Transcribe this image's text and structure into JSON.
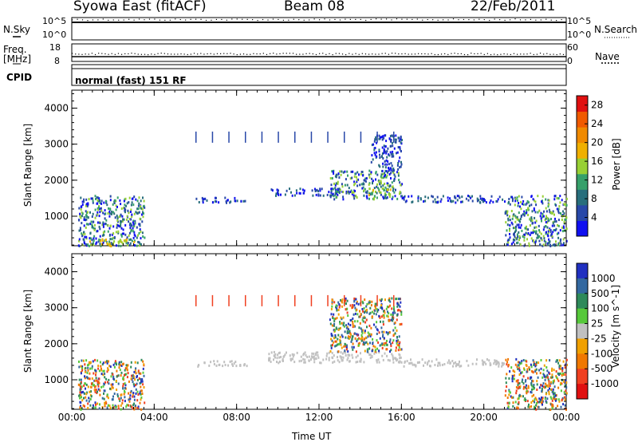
{
  "header": {
    "station": "Syowa East (fitACF)",
    "beam": "Beam 08",
    "date": "22/Feb/2011"
  },
  "strip": {
    "nsky_label": "N.Sky",
    "nsearch_label": "N.Search",
    "noise_tick_top": "10^5",
    "noise_tick_bottom": "10^0",
    "freq_label_1": "Freq.",
    "freq_label_2": "[MHz]",
    "freq_tick_top": "18",
    "freq_tick_bottom": "8",
    "nave_label": "Nave",
    "nave_tick_top": "60",
    "nave_tick_bottom": "0",
    "cpid_label": "CPID",
    "cpid_value": "normal (fast) 151 RF"
  },
  "power_panel": {
    "ylabel": "Slant Range [km]",
    "cbar_label": "Power [dB]"
  },
  "velocity_panel": {
    "ylabel": "Slant Range [km]",
    "cbar_label": "Velocity [m s^-1]"
  },
  "xlabel": "Time UT",
  "colors": {
    "power": [
      "#1010f0",
      "#2848a8",
      "#286e7c",
      "#36a06a",
      "#98d034",
      "#f0b000",
      "#f08a00",
      "#f05a00",
      "#e01010"
    ],
    "velocity": [
      "#2030c0",
      "#3368a0",
      "#2e8a5a",
      "#56c83a",
      "#c0c0c0",
      "#f0a000",
      "#f07800",
      "#f04020",
      "#e01010"
    ]
  },
  "chart_data": [
    {
      "type": "heatmap",
      "title": "Power",
      "xlabel": "Time UT",
      "ylabel": "Slant Range [km]",
      "x_ticks": [
        "00:00",
        "04:00",
        "08:00",
        "12:00",
        "16:00",
        "20:00",
        "00:00"
      ],
      "x_range_hours": [
        0,
        24
      ],
      "y_ticks": [
        1000,
        2000,
        3000,
        4000
      ],
      "ylim": [
        180,
        4500
      ],
      "colorbar": {
        "label": "Power [dB]",
        "ticks": [
          4,
          8,
          12,
          16,
          20,
          24,
          28
        ],
        "range": [
          0,
          30
        ]
      },
      "regions": [
        {
          "t0": 0.3,
          "t1": 3.5,
          "r0": 200,
          "r1": 1600,
          "level": "mixed"
        },
        {
          "t0": 0.8,
          "t1": 3.0,
          "r0": 200,
          "r1": 400,
          "level": "high (16-22 dB)"
        },
        {
          "t0": 6.0,
          "t1": 8.5,
          "r0": 1400,
          "r1": 1550,
          "level": "low (4-8 dB)"
        },
        {
          "t0": 9.5,
          "t1": 13.0,
          "r0": 1600,
          "r1": 1800,
          "level": "low (4-12 dB)"
        },
        {
          "t0": 12.5,
          "t1": 16.0,
          "r0": 1500,
          "r1": 2300,
          "level": "mixed"
        },
        {
          "t0": 14.0,
          "t1": 15.5,
          "r0": 1600,
          "r1": 1800,
          "level": "high (16-20 dB)"
        },
        {
          "t0": 14.5,
          "t1": 16.0,
          "r0": 2300,
          "r1": 3300,
          "level": "low (4-8 dB)"
        },
        {
          "t0": 16.0,
          "t1": 21.0,
          "r0": 1400,
          "r1": 1600,
          "level": "low (4-12 dB)"
        },
        {
          "t0": 21.0,
          "t1": 24.0,
          "r0": 200,
          "r1": 1600,
          "level": "mixed"
        }
      ]
    },
    {
      "type": "heatmap",
      "title": "Velocity",
      "xlabel": "Time UT",
      "ylabel": "Slant Range [km]",
      "x_ticks": [
        "00:00",
        "04:00",
        "08:00",
        "12:00",
        "16:00",
        "20:00",
        "00:00"
      ],
      "x_range_hours": [
        0,
        24
      ],
      "y_ticks": [
        1000,
        2000,
        3000,
        4000
      ],
      "ylim": [
        180,
        4500
      ],
      "colorbar": {
        "label": "Velocity [m s^-1]",
        "ticks": [
          -1000,
          -500,
          -100,
          -25,
          25,
          100,
          500,
          1000
        ]
      },
      "regions": [
        {
          "t0": 0.3,
          "t1": 3.5,
          "r0": 200,
          "r1": 1600,
          "level": "mixed (orange/green/blue)"
        },
        {
          "t0": 6.0,
          "t1": 8.5,
          "r0": 1400,
          "r1": 1550,
          "level": "ground scatter (gray)"
        },
        {
          "t0": 9.5,
          "t1": 16.0,
          "r0": 1500,
          "r1": 1800,
          "level": "ground scatter (gray)"
        },
        {
          "t0": 12.5,
          "t1": 16.0,
          "r0": 1800,
          "r1": 3300,
          "level": "mixed (orange/green)"
        },
        {
          "t0": 16.0,
          "t1": 21.0,
          "r0": 1400,
          "r1": 1600,
          "level": "ground scatter (gray)"
        },
        {
          "t0": 21.0,
          "t1": 24.0,
          "r0": 200,
          "r1": 1600,
          "level": "mixed (blue/green/orange)"
        }
      ]
    }
  ]
}
